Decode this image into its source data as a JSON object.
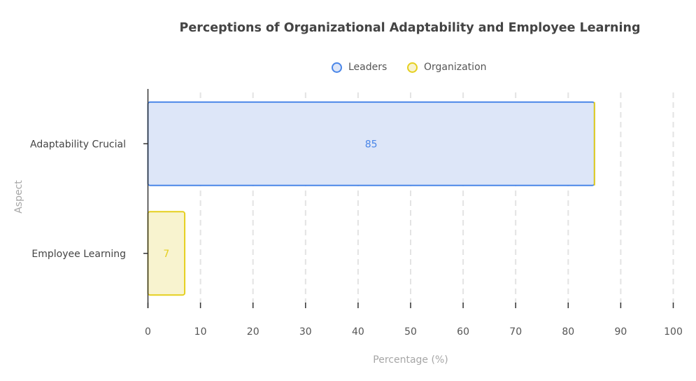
{
  "chart_data": {
    "type": "bar",
    "orientation": "horizontal",
    "title": "Perceptions of Organizational Adaptability and Employee Learning",
    "xlabel": "Percentage (%)",
    "ylabel": "Aspect",
    "categories": [
      "Adaptability Crucial",
      "Employee Learning"
    ],
    "series": [
      {
        "name": "Leaders",
        "values": [
          85,
          null
        ],
        "color": "#4a86e8",
        "fill": "#dde6f8"
      },
      {
        "name": "Organization",
        "values": [
          null,
          7
        ],
        "color": "#e5cf1f",
        "fill": "#f8f3cf"
      }
    ],
    "data_labels": [
      "85",
      "7"
    ],
    "xlim": [
      0,
      100
    ],
    "xticks": [
      0,
      10,
      20,
      30,
      40,
      50,
      60,
      70,
      80,
      90,
      100
    ],
    "grid": "vertical dashed",
    "legend_position": "top-center"
  }
}
